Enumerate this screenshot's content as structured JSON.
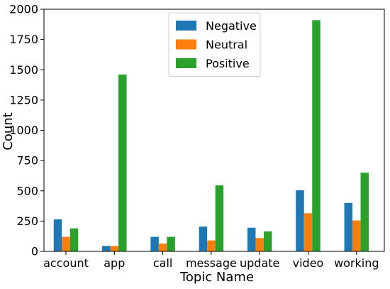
{
  "chart_data": {
    "type": "bar",
    "title": "",
    "xlabel": "Topic Name",
    "ylabel": "Count",
    "ylim": [
      0,
      2000
    ],
    "yticks": [
      0,
      250,
      500,
      750,
      1000,
      1250,
      1500,
      1750,
      2000
    ],
    "grid": false,
    "legend_position": "top-center",
    "categories": [
      "account",
      "app",
      "call",
      "message",
      "update",
      "video",
      "working"
    ],
    "series": [
      {
        "name": "Negative",
        "color": "#1f77b4",
        "values": [
          265,
          45,
          120,
          205,
          195,
          505,
          400
        ]
      },
      {
        "name": "Neutral",
        "color": "#ff7f0e",
        "values": [
          120,
          45,
          65,
          90,
          110,
          315,
          255
        ]
      },
      {
        "name": "Positive",
        "color": "#2ca02c",
        "values": [
          190,
          1460,
          120,
          545,
          165,
          1910,
          650
        ]
      }
    ]
  }
}
